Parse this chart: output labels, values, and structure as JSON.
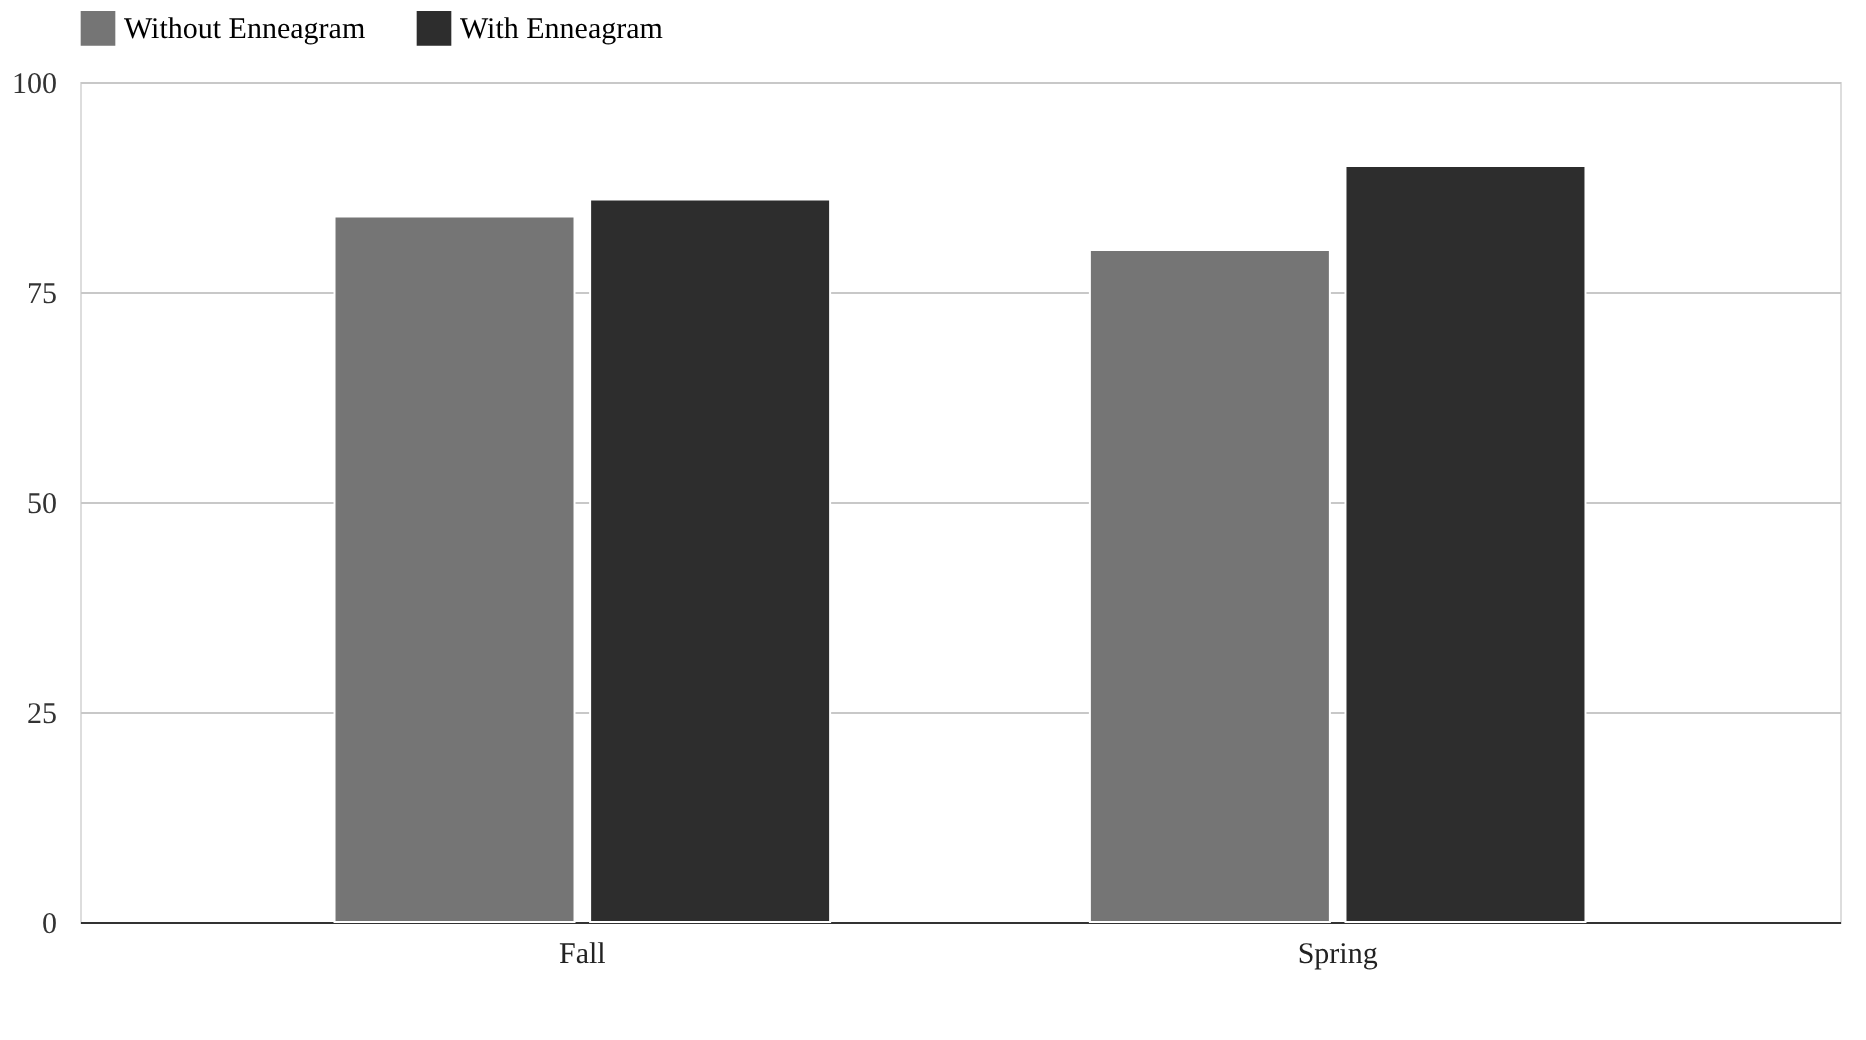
{
  "chart_data": {
    "type": "bar",
    "categories": [
      "Fall",
      "Spring"
    ],
    "series": [
      {
        "name": "Without Enneagram",
        "color": "#757575",
        "values": [
          84,
          80
        ]
      },
      {
        "name": "With Enneagram",
        "color": "#2d2d2d",
        "values": [
          86,
          90
        ]
      }
    ],
    "ylim": [
      0,
      100
    ],
    "yticks": [
      0,
      25,
      50,
      75,
      100
    ],
    "grid": "y",
    "legend": "top"
  }
}
